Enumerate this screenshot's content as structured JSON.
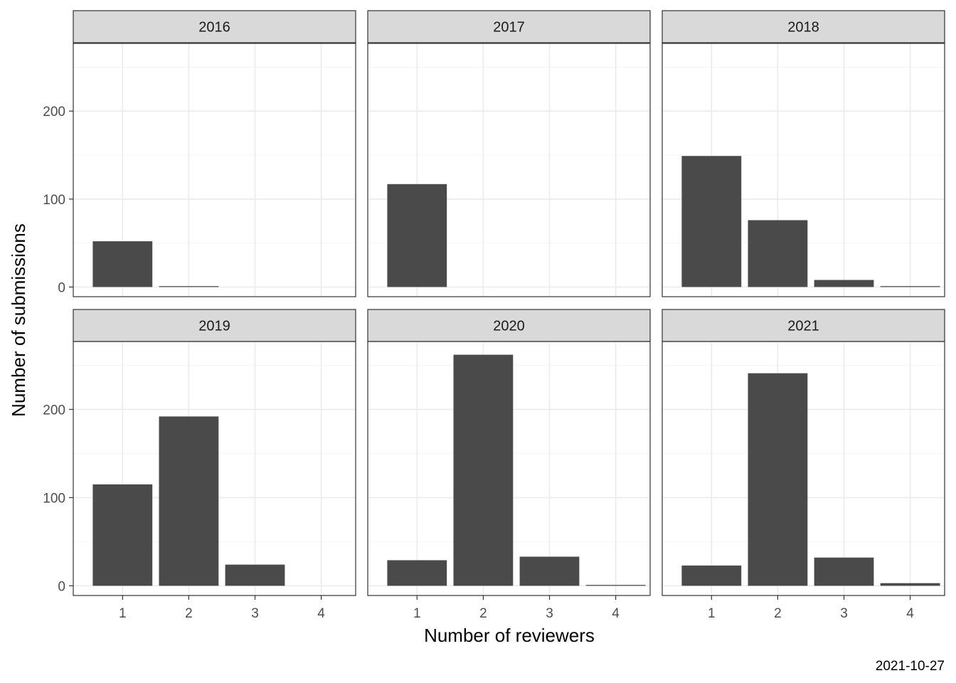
{
  "chart_data": {
    "type": "bar",
    "xlabel": "Number of reviewers",
    "ylabel": "Number of submissions",
    "caption": "2021-10-27",
    "categories": [
      "1",
      "2",
      "3",
      "4"
    ],
    "y_ticks": [
      "0",
      "100",
      "200"
    ],
    "ylim": [
      -11,
      277
    ],
    "grid": true,
    "bar_color": "#4a4a4a",
    "strip_color": "#d9d9d9",
    "facets": [
      {
        "label": "2016",
        "values": [
          52,
          1,
          0,
          0
        ]
      },
      {
        "label": "2017",
        "values": [
          117,
          0,
          0,
          0
        ]
      },
      {
        "label": "2018",
        "values": [
          149,
          76,
          8,
          1
        ]
      },
      {
        "label": "2019",
        "values": [
          115,
          192,
          24,
          0
        ]
      },
      {
        "label": "2020",
        "values": [
          29,
          262,
          33,
          1
        ]
      },
      {
        "label": "2021",
        "values": [
          23,
          241,
          32,
          3
        ]
      }
    ]
  }
}
